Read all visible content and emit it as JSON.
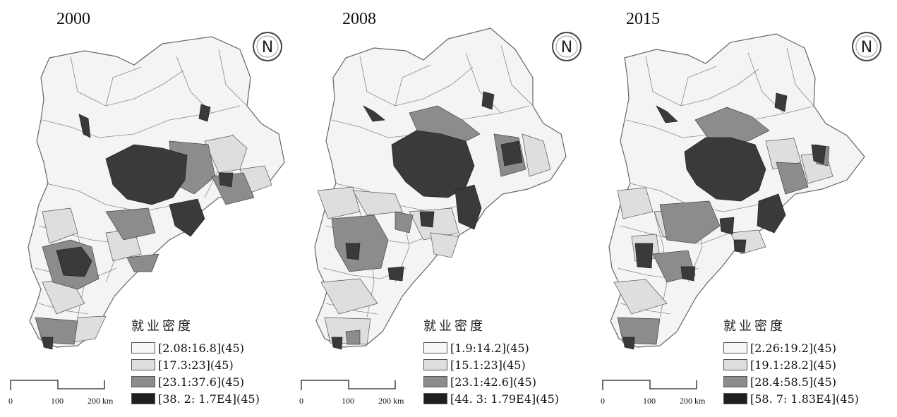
{
  "legend_title": "就业密度",
  "scale": {
    "zero": "0",
    "mid": "100",
    "end": "200",
    "unit": "km"
  },
  "north_label": "N",
  "class_colors": [
    "#f7f7f7",
    "#dedede",
    "#8c8c8c",
    "#3a3a3a"
  ],
  "panels": [
    {
      "year": "2000",
      "classes": [
        "[2.08:16.8](45)",
        "[17.3:23](45)",
        "[23.1:37.6](45)",
        "[38. 2: 1.7E4](45)"
      ]
    },
    {
      "year": "2008",
      "classes": [
        "[1.9:14.2](45)",
        "[15.1:23](45)",
        "[23.1:42.6](45)",
        "[44. 3: 1.79E4](45)"
      ]
    },
    {
      "year": "2015",
      "classes": [
        "[2.26:19.2](45)",
        "[19.1:28.2](45)",
        "[28.4:58.5](45)",
        "[58. 7: 1.83E4](45)"
      ]
    }
  ]
}
